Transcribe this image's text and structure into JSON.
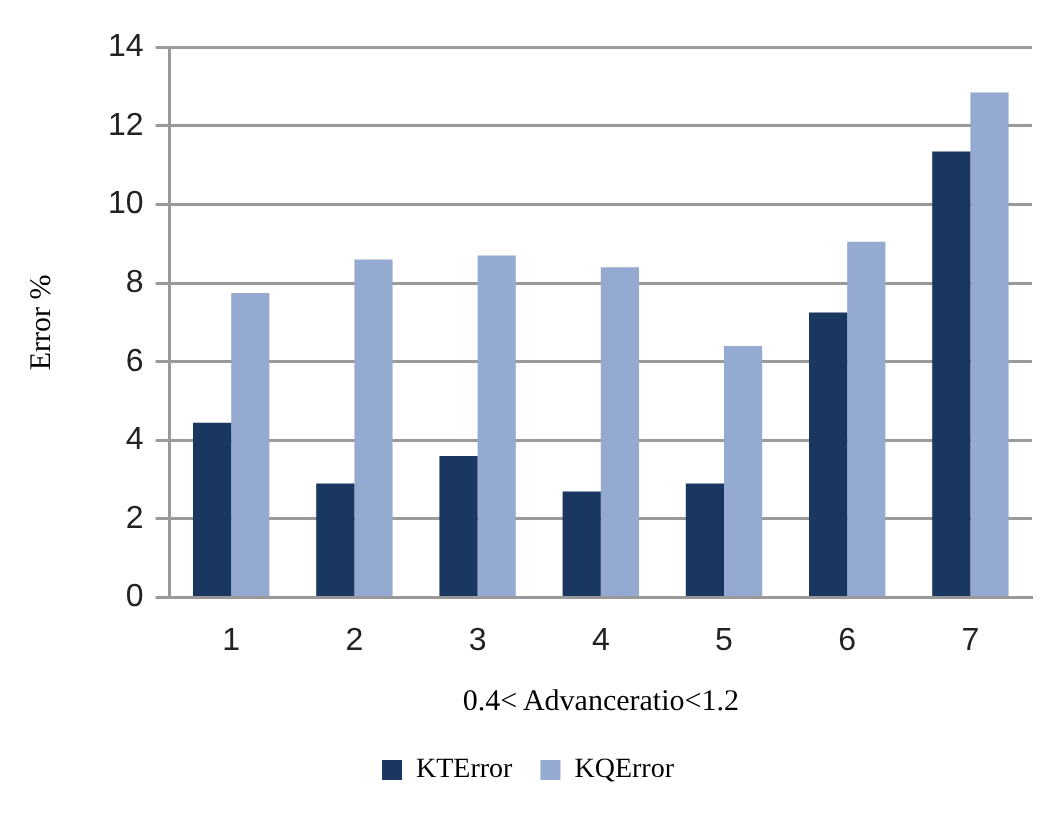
{
  "chart_data": {
    "type": "bar",
    "categories": [
      "1",
      "2",
      "3",
      "4",
      "5",
      "6",
      "7"
    ],
    "series": [
      {
        "name": "KTError",
        "color": "#1a3761",
        "values": [
          4.45,
          2.9,
          3.6,
          2.7,
          2.9,
          7.25,
          11.35
        ]
      },
      {
        "name": "KQError",
        "color": "#95aad1",
        "values": [
          7.75,
          8.6,
          8.7,
          8.4,
          6.4,
          9.05,
          12.85
        ]
      }
    ],
    "xlabel": "0.4< Advanceratio<1.2",
    "ylabel": "Error %",
    "ylim": [
      0,
      14
    ],
    "yticks": [
      0,
      2,
      4,
      6,
      8,
      10,
      12,
      14
    ],
    "grid": "y",
    "legend": "bottom"
  }
}
